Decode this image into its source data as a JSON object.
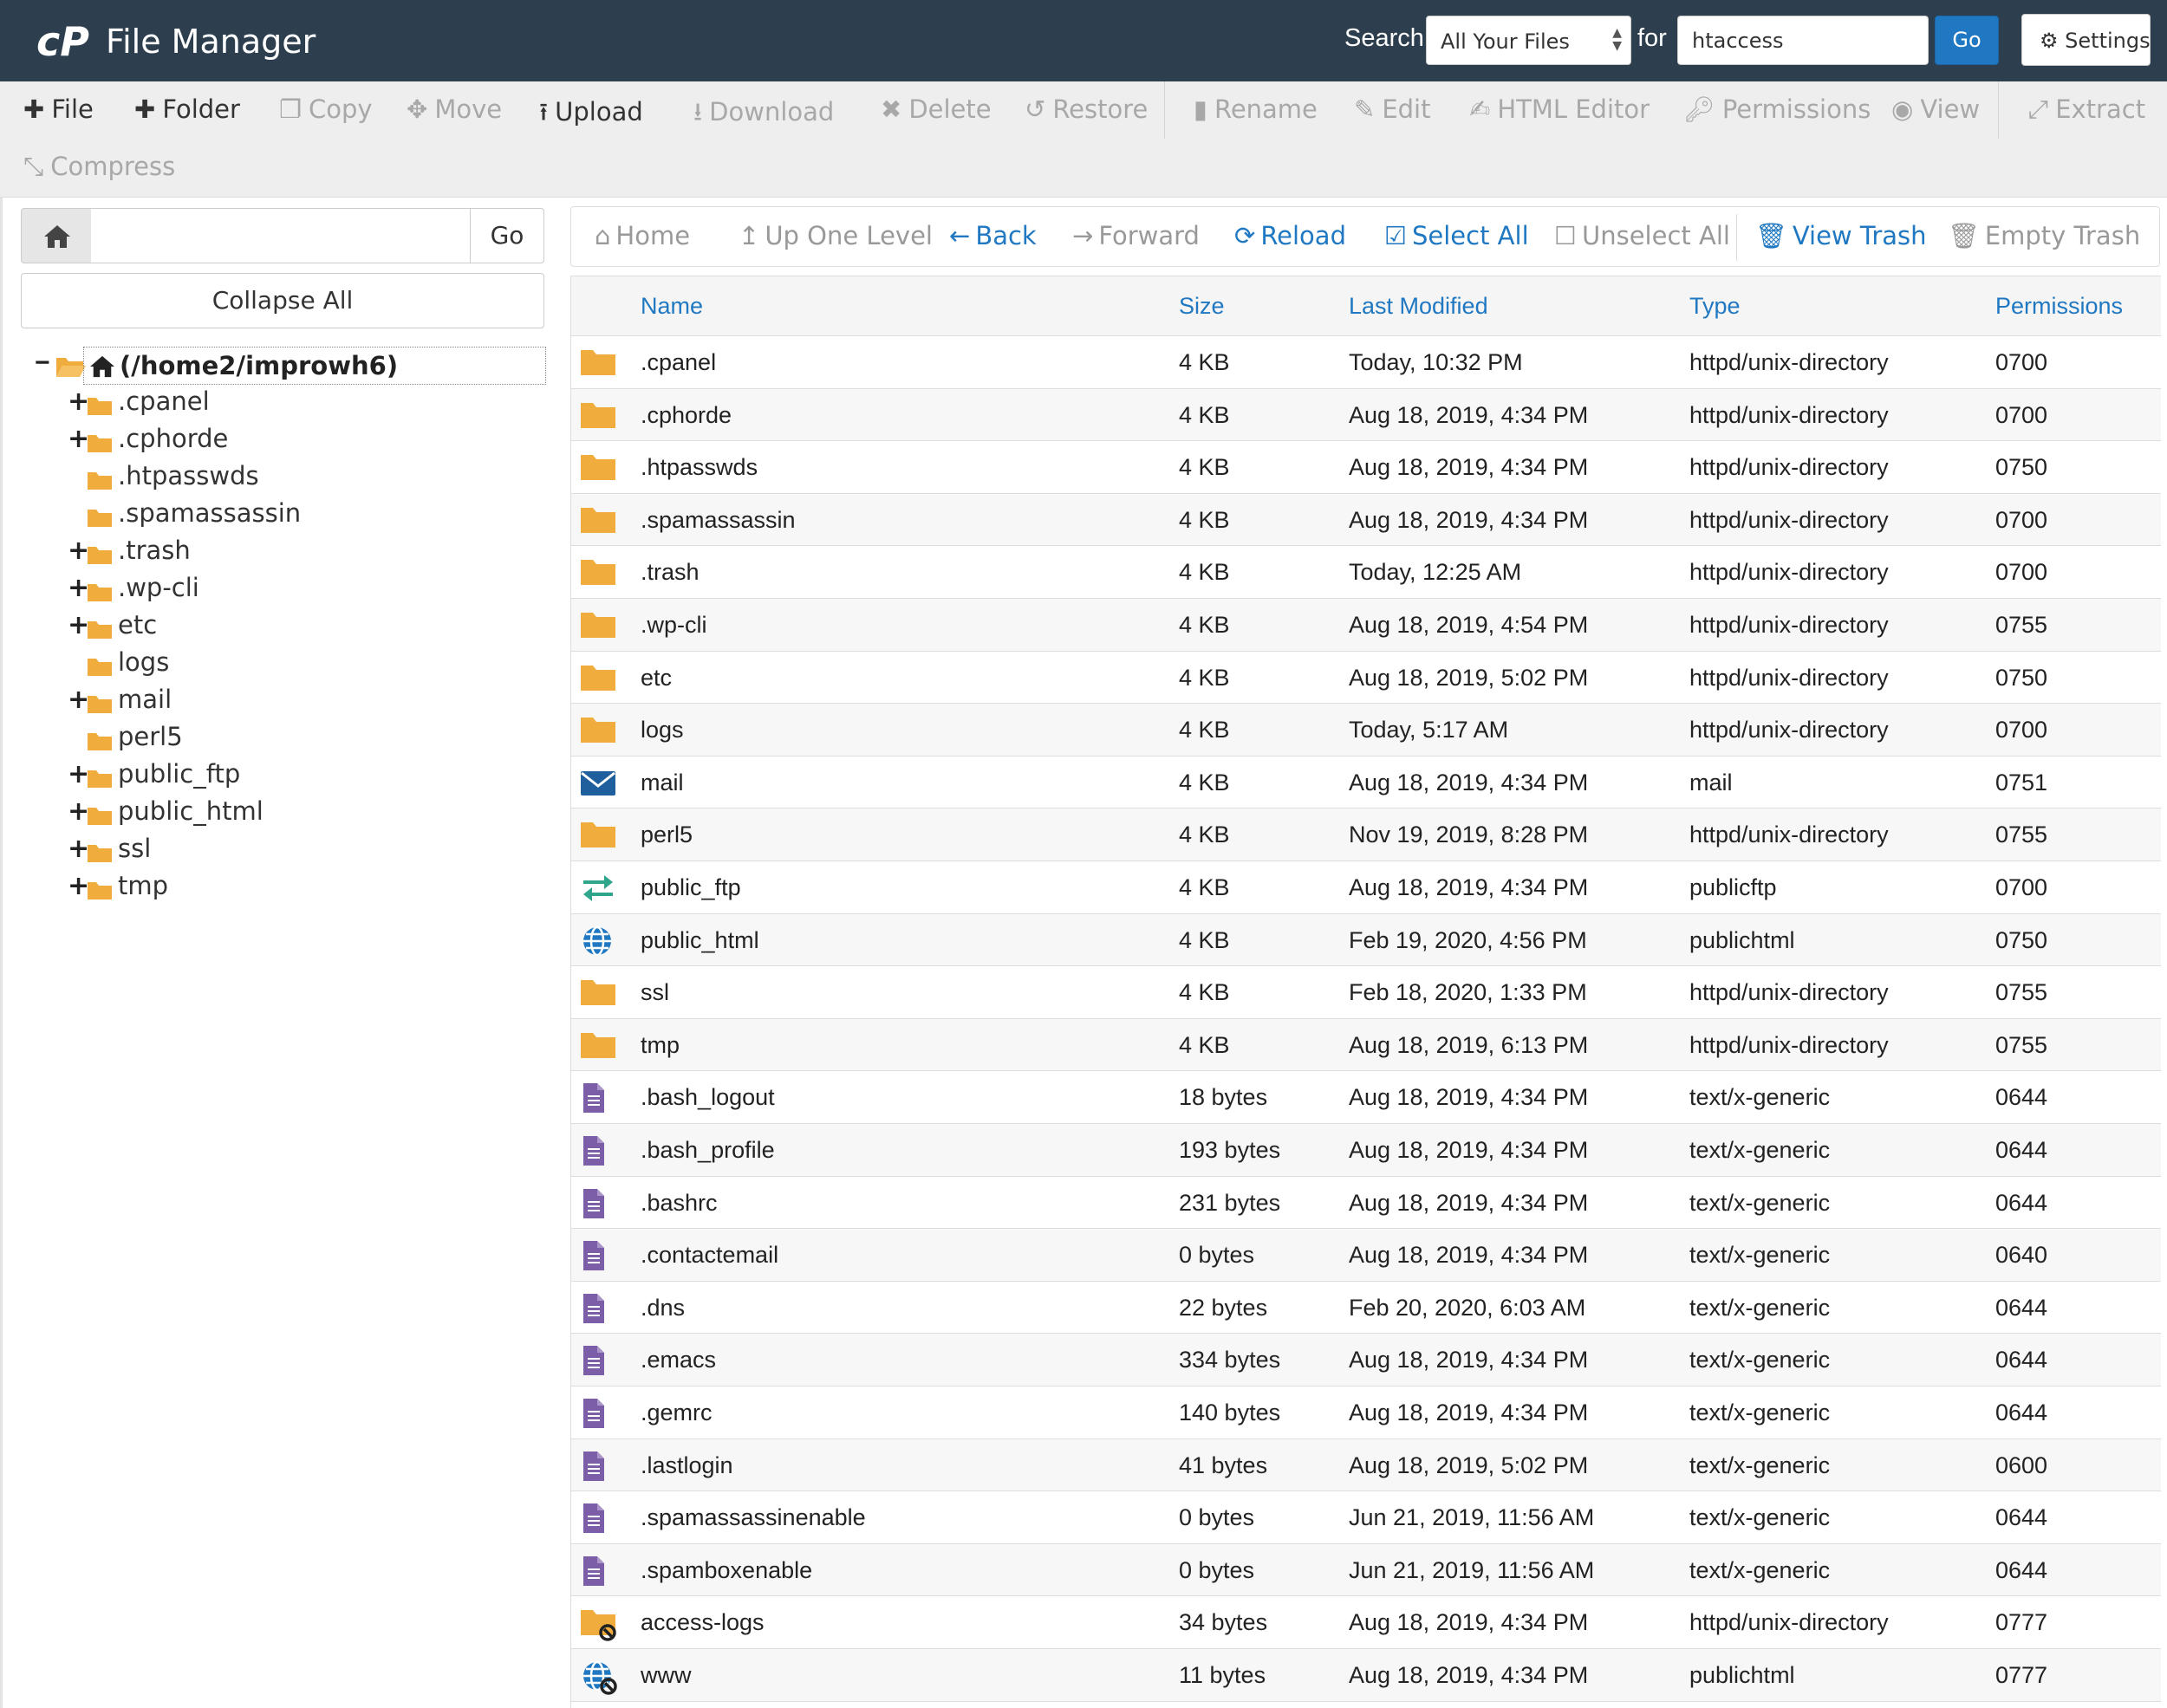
{
  "header": {
    "title": "File Manager",
    "search_label": "Search",
    "search_scope": "All Your Files",
    "for_label": "for",
    "search_value": "htaccess",
    "go_label": "Go",
    "settings_label": "Settings"
  },
  "toolbar": {
    "file": "File",
    "folder": "Folder",
    "copy": "Copy",
    "move": "Move",
    "upload": "Upload",
    "download": "Download",
    "delete": "Delete",
    "restore": "Restore",
    "rename": "Rename",
    "edit": "Edit",
    "html_editor": "HTML Editor",
    "permissions": "Permissions",
    "view": "View",
    "extract": "Extract",
    "compress": "Compress"
  },
  "sidebar": {
    "go_label": "Go",
    "collapse_label": "Collapse All",
    "root_label": "(/home2/improwh6)",
    "items": [
      {
        "label": ".cpanel",
        "expandable": true
      },
      {
        "label": ".cphorde",
        "expandable": true
      },
      {
        "label": ".htpasswds",
        "expandable": false
      },
      {
        "label": ".spamassassin",
        "expandable": false
      },
      {
        "label": ".trash",
        "expandable": true
      },
      {
        "label": ".wp-cli",
        "expandable": true
      },
      {
        "label": "etc",
        "expandable": true
      },
      {
        "label": "logs",
        "expandable": false
      },
      {
        "label": "mail",
        "expandable": true
      },
      {
        "label": "perl5",
        "expandable": false
      },
      {
        "label": "public_ftp",
        "expandable": true
      },
      {
        "label": "public_html",
        "expandable": true
      },
      {
        "label": "ssl",
        "expandable": true
      },
      {
        "label": "tmp",
        "expandable": true
      }
    ]
  },
  "nav": {
    "home": "Home",
    "up": "Up One Level",
    "back": "Back",
    "forward": "Forward",
    "reload": "Reload",
    "select_all": "Select All",
    "unselect_all": "Unselect All",
    "view_trash": "View Trash",
    "empty_trash": "Empty Trash"
  },
  "table": {
    "columns": {
      "name": "Name",
      "size": "Size",
      "modified": "Last Modified",
      "type": "Type",
      "permissions": "Permissions"
    },
    "rows": [
      {
        "icon": "folder-icon",
        "name": ".cpanel",
        "size": "4 KB",
        "modified": "Today, 10:32 PM",
        "type": "httpd/unix-directory",
        "perms": "0700"
      },
      {
        "icon": "folder-icon",
        "name": ".cphorde",
        "size": "4 KB",
        "modified": "Aug 18, 2019, 4:34 PM",
        "type": "httpd/unix-directory",
        "perms": "0700"
      },
      {
        "icon": "folder-icon",
        "name": ".htpasswds",
        "size": "4 KB",
        "modified": "Aug 18, 2019, 4:34 PM",
        "type": "httpd/unix-directory",
        "perms": "0750"
      },
      {
        "icon": "folder-icon",
        "name": ".spamassassin",
        "size": "4 KB",
        "modified": "Aug 18, 2019, 4:34 PM",
        "type": "httpd/unix-directory",
        "perms": "0700"
      },
      {
        "icon": "folder-icon",
        "name": ".trash",
        "size": "4 KB",
        "modified": "Today, 12:25 AM",
        "type": "httpd/unix-directory",
        "perms": "0700"
      },
      {
        "icon": "folder-icon",
        "name": ".wp-cli",
        "size": "4 KB",
        "modified": "Aug 18, 2019, 4:54 PM",
        "type": "httpd/unix-directory",
        "perms": "0755"
      },
      {
        "icon": "folder-icon",
        "name": "etc",
        "size": "4 KB",
        "modified": "Aug 18, 2019, 5:02 PM",
        "type": "httpd/unix-directory",
        "perms": "0750"
      },
      {
        "icon": "folder-icon",
        "name": "logs",
        "size": "4 KB",
        "modified": "Today, 5:17 AM",
        "type": "httpd/unix-directory",
        "perms": "0700"
      },
      {
        "icon": "mail-icon",
        "name": "mail",
        "size": "4 KB",
        "modified": "Aug 18, 2019, 4:34 PM",
        "type": "mail",
        "perms": "0751"
      },
      {
        "icon": "folder-icon",
        "name": "perl5",
        "size": "4 KB",
        "modified": "Nov 19, 2019, 8:28 PM",
        "type": "httpd/unix-directory",
        "perms": "0755"
      },
      {
        "icon": "transfer-icon",
        "name": "public_ftp",
        "size": "4 KB",
        "modified": "Aug 18, 2019, 4:34 PM",
        "type": "publicftp",
        "perms": "0700"
      },
      {
        "icon": "globe-icon",
        "name": "public_html",
        "size": "4 KB",
        "modified": "Feb 19, 2020, 4:56 PM",
        "type": "publichtml",
        "perms": "0750"
      },
      {
        "icon": "folder-icon",
        "name": "ssl",
        "size": "4 KB",
        "modified": "Feb 18, 2020, 1:33 PM",
        "type": "httpd/unix-directory",
        "perms": "0755"
      },
      {
        "icon": "folder-icon",
        "name": "tmp",
        "size": "4 KB",
        "modified": "Aug 18, 2019, 6:13 PM",
        "type": "httpd/unix-directory",
        "perms": "0755"
      },
      {
        "icon": "text-file-icon",
        "name": ".bash_logout",
        "size": "18 bytes",
        "modified": "Aug 18, 2019, 4:34 PM",
        "type": "text/x-generic",
        "perms": "0644"
      },
      {
        "icon": "text-file-icon",
        "name": ".bash_profile",
        "size": "193 bytes",
        "modified": "Aug 18, 2019, 4:34 PM",
        "type": "text/x-generic",
        "perms": "0644"
      },
      {
        "icon": "text-file-icon",
        "name": ".bashrc",
        "size": "231 bytes",
        "modified": "Aug 18, 2019, 4:34 PM",
        "type": "text/x-generic",
        "perms": "0644"
      },
      {
        "icon": "text-file-icon",
        "name": ".contactemail",
        "size": "0 bytes",
        "modified": "Aug 18, 2019, 4:34 PM",
        "type": "text/x-generic",
        "perms": "0640"
      },
      {
        "icon": "text-file-icon",
        "name": ".dns",
        "size": "22 bytes",
        "modified": "Feb 20, 2020, 6:03 AM",
        "type": "text/x-generic",
        "perms": "0644"
      },
      {
        "icon": "text-file-icon",
        "name": ".emacs",
        "size": "334 bytes",
        "modified": "Aug 18, 2019, 4:34 PM",
        "type": "text/x-generic",
        "perms": "0644"
      },
      {
        "icon": "text-file-icon",
        "name": ".gemrc",
        "size": "140 bytes",
        "modified": "Aug 18, 2019, 4:34 PM",
        "type": "text/x-generic",
        "perms": "0644"
      },
      {
        "icon": "text-file-icon",
        "name": ".lastlogin",
        "size": "41 bytes",
        "modified": "Aug 18, 2019, 5:02 PM",
        "type": "text/x-generic",
        "perms": "0600"
      },
      {
        "icon": "text-file-icon",
        "name": ".spamassassinenable",
        "size": "0 bytes",
        "modified": "Jun 21, 2019, 11:56 AM",
        "type": "text/x-generic",
        "perms": "0644"
      },
      {
        "icon": "text-file-icon",
        "name": ".spamboxenable",
        "size": "0 bytes",
        "modified": "Jun 21, 2019, 11:56 AM",
        "type": "text/x-generic",
        "perms": "0644"
      },
      {
        "icon": "folder-link-icon",
        "name": "access-logs",
        "size": "34 bytes",
        "modified": "Aug 18, 2019, 4:34 PM",
        "type": "httpd/unix-directory",
        "perms": "0777"
      },
      {
        "icon": "globe-link-icon",
        "name": "www",
        "size": "11 bytes",
        "modified": "Aug 18, 2019, 4:34 PM",
        "type": "publichtml",
        "perms": "0777"
      }
    ]
  },
  "colors": {
    "header_bg": "#2d3f4e",
    "accent_blue": "#1f78c1",
    "folder": "#f0ad3e",
    "text_file": "#7b5ea7",
    "transfer": "#2fa58c"
  }
}
